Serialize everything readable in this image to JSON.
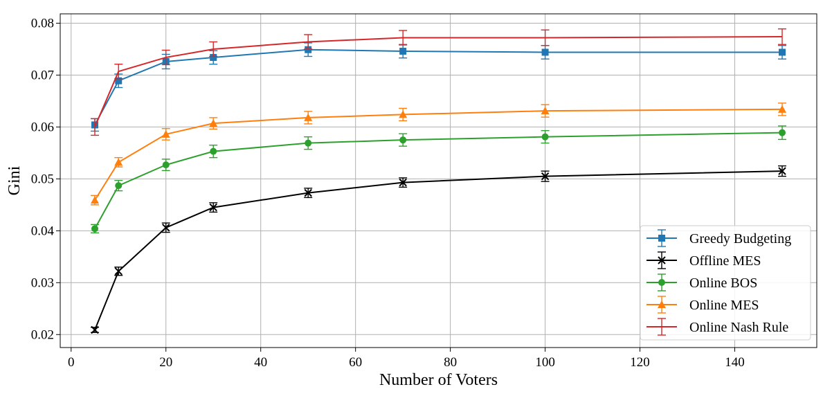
{
  "chart_data": {
    "type": "line",
    "title": "",
    "xlabel": "Number of Voters",
    "ylabel": "Gini",
    "xlim": [
      -2.3,
      157.3
    ],
    "ylim": [
      0.0175,
      0.0818
    ],
    "xticks": [
      0,
      20,
      40,
      60,
      80,
      100,
      120,
      140
    ],
    "xtick_labels": [
      "0",
      "20",
      "40",
      "60",
      "80",
      "100",
      "120",
      "140"
    ],
    "yticks": [
      0.02,
      0.03,
      0.04,
      0.05,
      0.06,
      0.07,
      0.08
    ],
    "ytick_labels": [
      "0.02",
      "0.03",
      "0.04",
      "0.05",
      "0.06",
      "0.07",
      "0.08"
    ],
    "grid": true,
    "legend_position": "lower-right",
    "x": [
      5,
      10,
      20,
      30,
      50,
      70,
      100,
      150
    ],
    "series": [
      {
        "name": "Greedy Budgeting",
        "color": "#1f77b4",
        "marker": "square",
        "values": [
          0.0604,
          0.0689,
          0.0726,
          0.0734,
          0.0749,
          0.0746,
          0.0744,
          0.0744
        ],
        "errors": [
          0.0012,
          0.0013,
          0.0014,
          0.0013,
          0.0013,
          0.0013,
          0.0013,
          0.0013
        ]
      },
      {
        "name": "Offline MES",
        "color": "#000000",
        "marker": "x",
        "values": [
          0.0209,
          0.0322,
          0.0406,
          0.0445,
          0.0473,
          0.0493,
          0.0505,
          0.0515
        ],
        "errors": [
          0.0005,
          0.0008,
          0.0009,
          0.0009,
          0.0009,
          0.0009,
          0.001,
          0.001
        ]
      },
      {
        "name": "Online BOS",
        "color": "#2ca02c",
        "marker": "circle",
        "values": [
          0.0404,
          0.0487,
          0.0527,
          0.0553,
          0.0569,
          0.0575,
          0.0581,
          0.0589
        ],
        "errors": [
          0.0008,
          0.001,
          0.0011,
          0.0012,
          0.0012,
          0.0012,
          0.0012,
          0.0013
        ]
      },
      {
        "name": "Online MES",
        "color": "#ff7f0e",
        "marker": "triangle",
        "values": [
          0.0459,
          0.0532,
          0.0586,
          0.0607,
          0.0618,
          0.0624,
          0.0631,
          0.0634
        ],
        "errors": [
          0.0009,
          0.0009,
          0.0011,
          0.0011,
          0.0012,
          0.0012,
          0.0012,
          0.0012
        ]
      },
      {
        "name": "Online Nash Rule",
        "color": "#d62728",
        "marker": "none",
        "values": [
          0.06,
          0.0707,
          0.0734,
          0.075,
          0.0764,
          0.0772,
          0.0772,
          0.0774
        ],
        "errors": [
          0.0016,
          0.0014,
          0.0014,
          0.0014,
          0.0014,
          0.0014,
          0.0015,
          0.0015
        ]
      }
    ]
  }
}
